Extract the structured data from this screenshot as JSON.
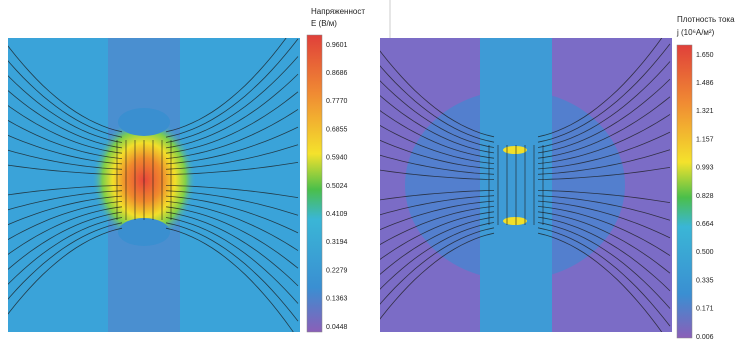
{
  "panels": [
    {
      "colorbar": {
        "title": [
          "Напряженност",
          "E (В/м)"
        ],
        "ticks": [
          "0.9601",
          "0.8686",
          "0.7770",
          "0.6855",
          "0.5940",
          "0.5024",
          "0.4109",
          "0.3194",
          "0.2279",
          "0.1363",
          "0.0448"
        ]
      }
    },
    {
      "colorbar": {
        "title": [
          "Плотность тока",
          "j (10⁶A/м²)"
        ],
        "ticks": [
          "1.650",
          "1.486",
          "1.321",
          "1.157",
          "0.993",
          "0.828",
          "0.664",
          "0.500",
          "0.335",
          "0.171",
          "0.006"
        ]
      }
    }
  ]
}
